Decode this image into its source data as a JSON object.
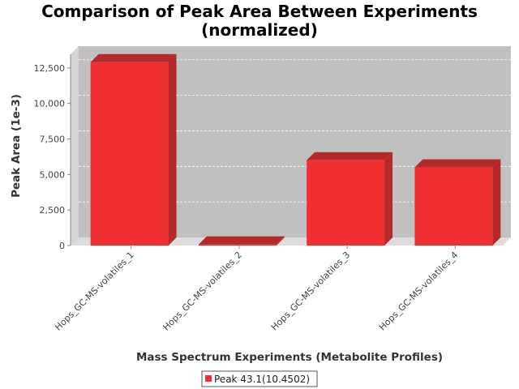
{
  "chart_data": {
    "type": "bar",
    "title": "Comparison of Peak Area Between Experiments",
    "subtitle": "(normalized)",
    "xlabel": "Mass Spectrum Experiments (Metabolite Profiles)",
    "ylabel": "Peak Area (1e-3)",
    "categories": [
      "Hops_GC-MS-volatiles_1",
      "Hops_GC-MS-volatiles_2",
      "Hops_GC-MS-volatiles_3",
      "Hops_GC-MS-volatiles_4"
    ],
    "series": [
      {
        "name": "Peak 43.1(10.4502)",
        "values": [
          12900,
          20,
          6000,
          5500
        ]
      }
    ],
    "ylim": [
      0,
      13000
    ],
    "yticks": [
      0,
      2500,
      5000,
      7500,
      10000,
      12500
    ],
    "ytick_labels": [
      "0",
      "2,500",
      "5,000",
      "7,500",
      "10,000",
      "12,500"
    ],
    "grid": true,
    "legend_position": "bottom",
    "colors": {
      "bar": "#f03030",
      "bar_top": "#b42a2a",
      "bar_side": "#b42a2a",
      "plot_bg": "#c0c0c0",
      "floor": "#dddddd"
    }
  }
}
